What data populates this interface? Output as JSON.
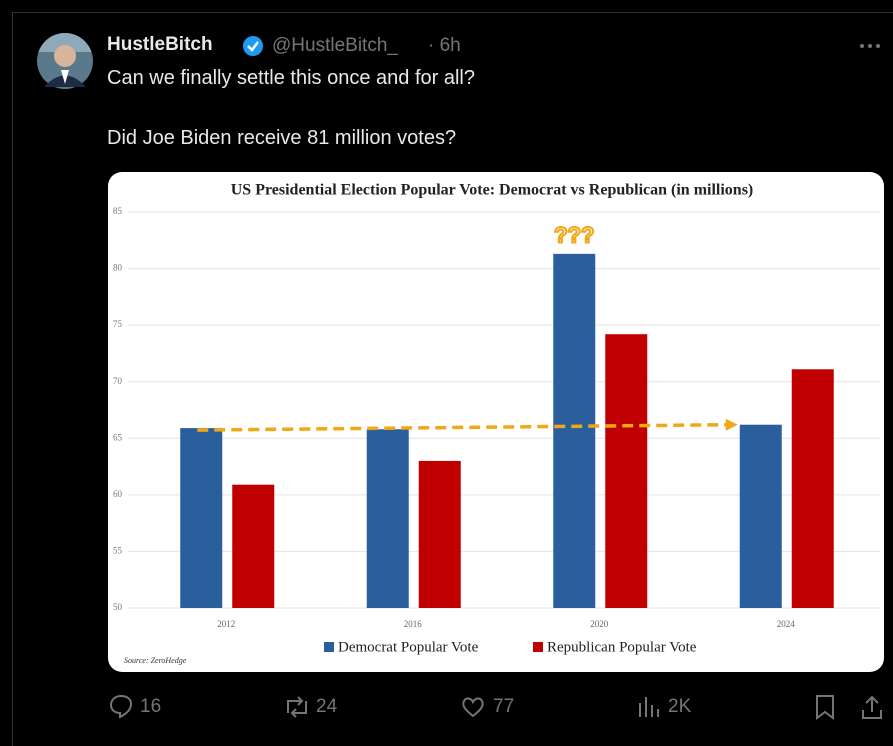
{
  "tweet": {
    "author": {
      "name": "HustleBitch",
      "handle": "@HustleBitch_",
      "time": "· 6h"
    },
    "text": [
      "Can we finally settle this once and for all?",
      "Did Joe Biden receive 81 million votes?"
    ],
    "actions": {
      "replies": 16,
      "reposts": 24,
      "likes": 77,
      "views": "2K"
    }
  },
  "chart_data": {
    "type": "bar",
    "title": "US Presidential Election Popular Vote: Democrat vs Republican (in millions)",
    "categories": [
      "2012",
      "2016",
      "2020",
      "2024"
    ],
    "series": [
      {
        "name": "Democrat Popular Vote",
        "color": "#2a5e9c",
        "values": [
          65.9,
          65.8,
          81.3,
          66.2
        ]
      },
      {
        "name": "Republican Popular Vote",
        "color": "#c00000",
        "values": [
          60.9,
          63.0,
          74.2,
          71.1
        ]
      }
    ],
    "ylim": [
      50,
      85
    ],
    "yticks": [
      50,
      55,
      60,
      65,
      70,
      75,
      80,
      85
    ],
    "grid": true,
    "annotation": "???",
    "source": "Source: ZeroHedge"
  }
}
